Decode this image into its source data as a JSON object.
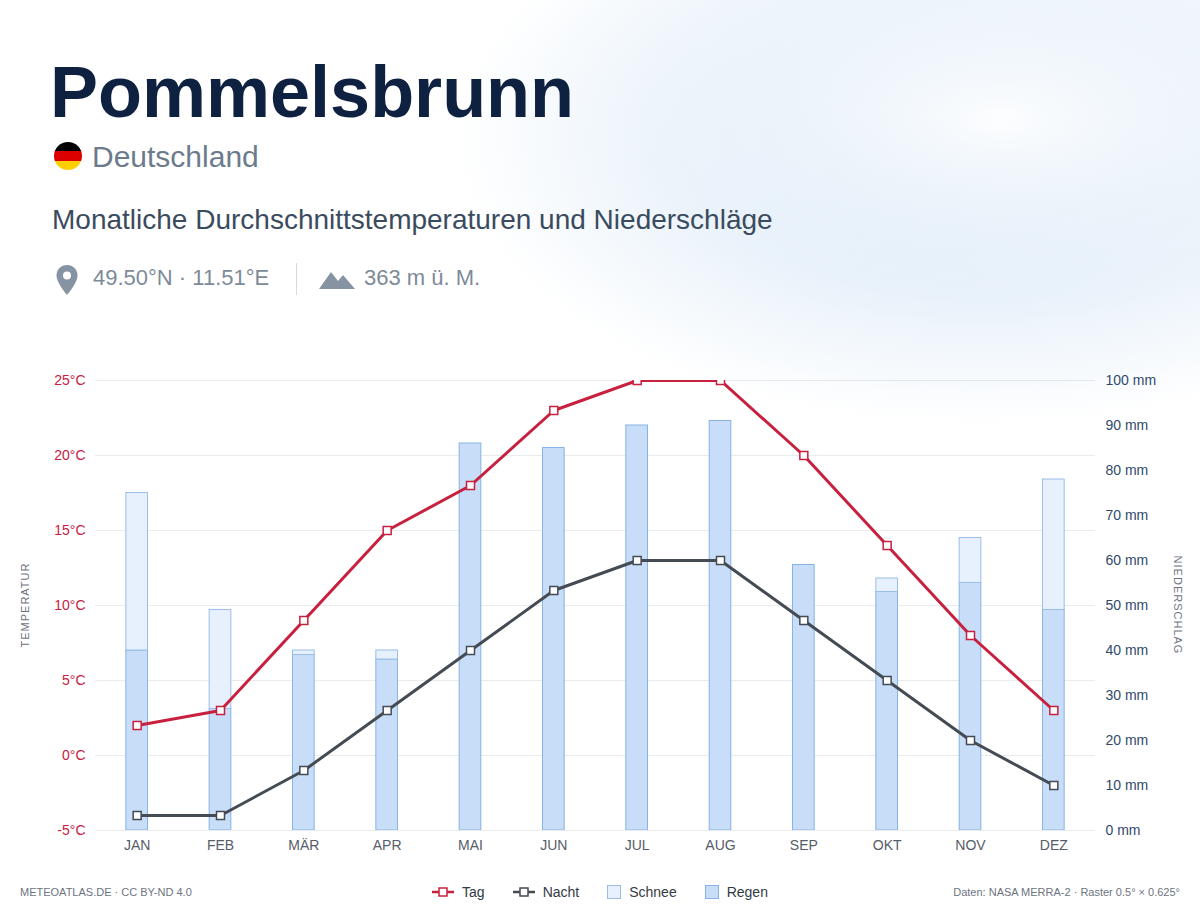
{
  "chart_data": {
    "type": "bar+line",
    "title": "Pommelsbrunn",
    "country": "Deutschland",
    "subtitle": "Monatliche Durchschnittstemperaturen und Niederschläge",
    "coordinates": "49.50°N · 11.51°E",
    "elevation": "363 m ü. M.",
    "credit": "METEOATLAS.DE · CC BY-ND 4.0",
    "data_source": "Daten: NASA MERRA-2 · Raster 0.5° × 0.625°",
    "ylabel": "TEMPERATUR",
    "y2label": "NIEDERSCHLAG",
    "categories": [
      "JAN",
      "FEB",
      "MÄR",
      "APR",
      "MAI",
      "JUN",
      "JUL",
      "AUG",
      "SEP",
      "OKT",
      "NOV",
      "DEZ"
    ],
    "series": [
      {
        "name": "Tag",
        "type": "line",
        "color": "#c8203f",
        "marker": "square",
        "values": [
          2,
          3,
          9,
          15,
          18,
          23,
          25,
          25,
          20,
          14,
          8,
          3
        ]
      },
      {
        "name": "Nacht",
        "type": "line",
        "color": "#454b53",
        "marker": "square",
        "values": [
          -4,
          -4,
          -1,
          3,
          7,
          11,
          13,
          13,
          9,
          5,
          1,
          -2
        ]
      },
      {
        "name": "Schnee",
        "type": "bar",
        "axis": "y2",
        "color": "#e7f1fd",
        "values": [
          35,
          22,
          1,
          2,
          0,
          0,
          0,
          0,
          0,
          3,
          10,
          29
        ]
      },
      {
        "name": "Regen",
        "type": "bar",
        "axis": "y2",
        "color": "#c7ddf8",
        "values": [
          40,
          27,
          39,
          38,
          86,
          85,
          90,
          91,
          59,
          53,
          55,
          49
        ]
      }
    ],
    "stacked": true,
    "ylim": [
      -5,
      25
    ],
    "yticks": [
      {
        "value": -5,
        "label": "-5°C"
      },
      {
        "value": 0,
        "label": "0°C"
      },
      {
        "value": 5,
        "label": "5°C"
      },
      {
        "value": 10,
        "label": "10°C"
      },
      {
        "value": 15,
        "label": "15°C"
      },
      {
        "value": 20,
        "label": "20°C"
      },
      {
        "value": 25,
        "label": "25°C"
      }
    ],
    "y2lim": [
      0,
      100
    ],
    "y2ticks": [
      {
        "value": 0,
        "label": "0 mm"
      },
      {
        "value": 10,
        "label": "10 mm"
      },
      {
        "value": 20,
        "label": "20 mm"
      },
      {
        "value": 30,
        "label": "30 mm"
      },
      {
        "value": 40,
        "label": "40 mm"
      },
      {
        "value": 50,
        "label": "50 mm"
      },
      {
        "value": 60,
        "label": "60 mm"
      },
      {
        "value": 70,
        "label": "70 mm"
      },
      {
        "value": 80,
        "label": "80 mm"
      },
      {
        "value": 90,
        "label": "90 mm"
      },
      {
        "value": 100,
        "label": "100 mm"
      }
    ],
    "grid": true,
    "legend": "bottom"
  }
}
